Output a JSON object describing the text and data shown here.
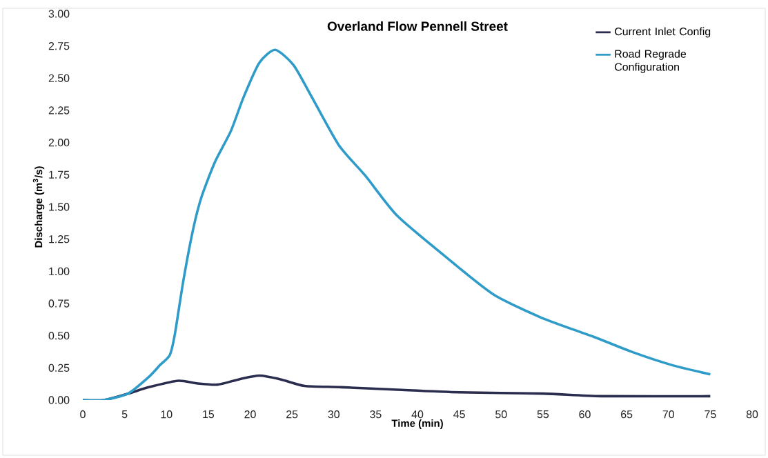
{
  "chart_data": {
    "type": "line",
    "title": "Overland Flow Pennell Street",
    "xlabel": "Time (min)",
    "ylabel": "Discharge (m$^{3}$/s)",
    "legend": "top right",
    "xlim": [
      0,
      80
    ],
    "xticks": [
      0,
      5,
      10,
      15,
      20,
      25,
      30,
      35,
      40,
      45,
      50,
      55,
      60,
      65,
      70,
      75,
      80
    ],
    "ylim": [
      0,
      3
    ],
    "yticks": [
      {
        "value": 0,
        "label": "0.00"
      },
      {
        "value": 0.25,
        "label": "0.25"
      },
      {
        "value": 0.5,
        "label": "0.50"
      },
      {
        "value": 0.75,
        "label": "0.75"
      },
      {
        "value": 1,
        "label": "1.00"
      },
      {
        "value": 1.25,
        "label": "1.25"
      },
      {
        "value": 1.5,
        "label": "1.50"
      },
      {
        "value": 1.75,
        "label": "1.75"
      },
      {
        "value": 2,
        "label": "2.00"
      },
      {
        "value": 2.25,
        "label": "2.25"
      },
      {
        "value": 2.5,
        "label": "2.50"
      },
      {
        "value": 2.75,
        "label": "2.75"
      },
      {
        "value": 3,
        "label": "3.00"
      }
    ],
    "series": [
      {
        "name": "Current Inlet Config",
        "color": "#2b2d4f",
        "x": [
          0,
          2.5,
          5.4,
          7.9,
          11.4,
          13.6,
          16.1,
          18.6,
          21.1,
          23.7,
          26.5,
          30.9,
          37.6,
          45,
          55,
          62,
          75
        ],
        "values": [
          0,
          0,
          0.05,
          0.1,
          0.15,
          0.13,
          0.12,
          0.16,
          0.19,
          0.16,
          0.11,
          0.1,
          0.08,
          0.06,
          0.05,
          0.03,
          0.03
        ]
      },
      {
        "name": "Road Regrade Configuration",
        "color": "#2e9bc8",
        "x": [
          0,
          2.5,
          5.4,
          7.9,
          9.2,
          10.4,
          11,
          12,
          13.2,
          14.2,
          15.8,
          17.7,
          19.2,
          21.1,
          23,
          25.2,
          27.4,
          30.6,
          33.8,
          37.6,
          43.8,
          49.1,
          54.8,
          61.1,
          65.8,
          70.5,
          75
        ],
        "values": [
          0,
          0,
          0.05,
          0.18,
          0.27,
          0.35,
          0.51,
          0.92,
          1.33,
          1.58,
          1.85,
          2.09,
          2.35,
          2.62,
          2.72,
          2.6,
          2.35,
          1.98,
          1.74,
          1.43,
          1.09,
          0.82,
          0.64,
          0.49,
          0.37,
          0.27,
          0.2
        ]
      }
    ]
  }
}
